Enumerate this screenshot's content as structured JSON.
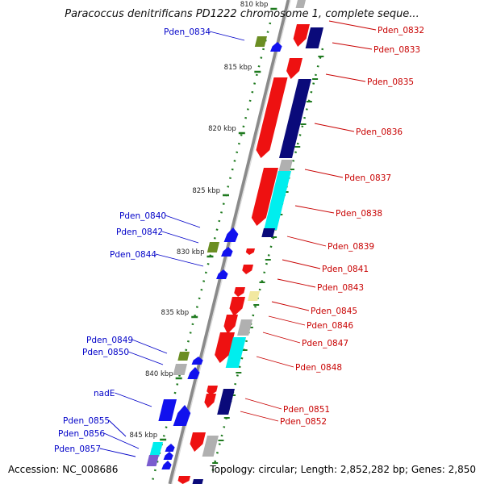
{
  "title": "Paracoccus denitrificans PD1222 chromosome 1, complete seque...",
  "footer": {
    "accession": "Accession: NC_008686",
    "summary": "Topology: circular; Length: 2,852,282 bp; Genes: 2,850"
  },
  "scale": {
    "unit": "kbp",
    "ticks": [
      "810 kbp",
      "815 kbp",
      "820 kbp",
      "825 kbp",
      "830 kbp",
      "835 kbp",
      "840 kbp",
      "845 kbp"
    ]
  },
  "colors": {
    "backbone": "#8a8a8a",
    "tick": "#1f7a1f",
    "label_forward": "#0000c8",
    "label_reverse": "#c80000",
    "cds_red": "#ee1111",
    "cds_navy": "#0a0a7a",
    "cds_blue": "#1111ee",
    "cds_cyan": "#00eeee",
    "cds_gray": "#b0b0b0",
    "cds_olive": "#6b8e23",
    "cds_yellow": "#f2e8a0"
  },
  "labels_left": [
    "Pden_0834",
    "Pden_0840",
    "Pden_0842",
    "Pden_0844",
    "Pden_0849",
    "Pden_0850",
    "nadE",
    "Pden_0855",
    "Pden_0856",
    "Pden_0857"
  ],
  "labels_right": [
    "Pden_0832",
    "Pden_0833",
    "Pden_0835",
    "Pden_0836",
    "Pden_0837",
    "Pden_0838",
    "Pden_0839",
    "Pden_0841",
    "Pden_0843",
    "Pden_0845",
    "Pden_0846",
    "Pden_0847",
    "Pden_0848",
    "Pden_0851",
    "Pden_0852"
  ]
}
